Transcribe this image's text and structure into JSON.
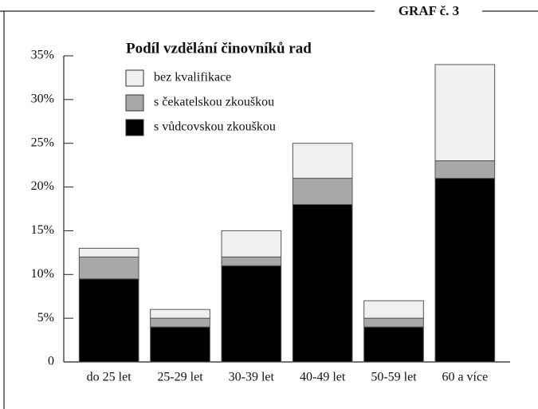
{
  "chart_data": {
    "type": "stacked_bar",
    "label": "GRAF č. 3",
    "title": "Podíl vzdělání činovníků rad",
    "categories": [
      "do 25 let",
      "25-29 let",
      "30-39 let",
      "40-49 let",
      "50-59 let",
      "60 a více"
    ],
    "series": [
      {
        "name": "s vůdcovskou zkouškou",
        "color": "#000000",
        "values": [
          9.5,
          4,
          11,
          18,
          4,
          21
        ]
      },
      {
        "name": "s čekatelskou zkouškou",
        "color": "#a8a8a8",
        "values": [
          2.5,
          1,
          1,
          3,
          1,
          2
        ]
      },
      {
        "name": "bez kvalifikace",
        "color": "#f0f0f0",
        "values": [
          1,
          1,
          3,
          4,
          2,
          11
        ]
      }
    ],
    "ylim": [
      0,
      35
    ],
    "yticks": [
      0,
      {
        "value": 5,
        "label": "5%"
      },
      {
        "value": 10,
        "label": "10%"
      },
      {
        "value": 15,
        "label": "15%"
      },
      {
        "value": 20,
        "label": "20%"
      },
      {
        "value": 25,
        "label": "25%"
      },
      {
        "value": 30,
        "label": "30%"
      },
      {
        "value": 35,
        "label": "35%"
      }
    ]
  }
}
